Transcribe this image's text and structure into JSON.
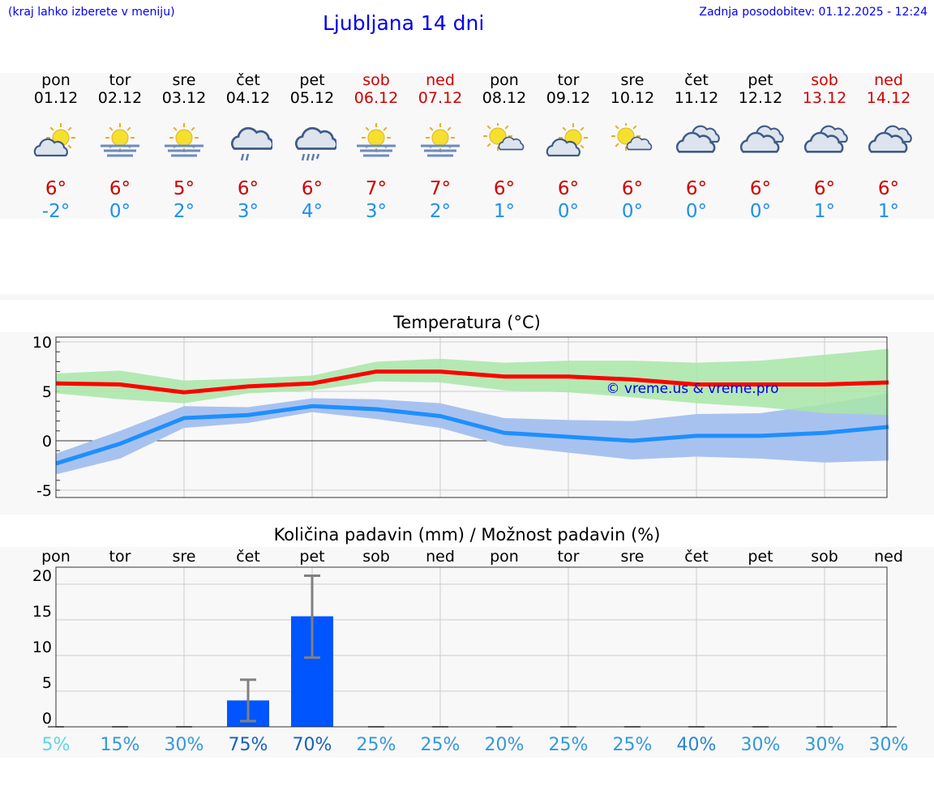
{
  "header": {
    "hint": "(kraj lahko izberete v meniju)",
    "title": "Ljubljana 14 dni",
    "updated": "Zadnja posodobitev: 01.12.2025 - 12:24"
  },
  "days": [
    {
      "name": "pon",
      "date": "01.12",
      "weekend": false,
      "icon": "sun-cloud-icon",
      "max": "6°",
      "min": "-2°"
    },
    {
      "name": "tor",
      "date": "02.12",
      "weekend": false,
      "icon": "sun-fog-icon",
      "max": "6°",
      "min": "0°"
    },
    {
      "name": "sre",
      "date": "03.12",
      "weekend": false,
      "icon": "sun-fog-icon",
      "max": "5°",
      "min": "2°"
    },
    {
      "name": "čet",
      "date": "04.12",
      "weekend": false,
      "icon": "cloud-rain-icon",
      "max": "6°",
      "min": "3°"
    },
    {
      "name": "pet",
      "date": "05.12",
      "weekend": false,
      "icon": "cloud-heavy-rain-icon",
      "max": "6°",
      "min": "4°"
    },
    {
      "name": "sob",
      "date": "06.12",
      "weekend": true,
      "icon": "sun-fog-icon",
      "max": "7°",
      "min": "3°"
    },
    {
      "name": "ned",
      "date": "07.12",
      "weekend": true,
      "icon": "sun-fog-icon",
      "max": "7°",
      "min": "2°"
    },
    {
      "name": "pon",
      "date": "08.12",
      "weekend": false,
      "icon": "sun-small-cloud-icon",
      "max": "6°",
      "min": "1°"
    },
    {
      "name": "tor",
      "date": "09.12",
      "weekend": false,
      "icon": "sun-cloud-icon",
      "max": "6°",
      "min": "0°"
    },
    {
      "name": "sre",
      "date": "10.12",
      "weekend": false,
      "icon": "sun-small-cloud-icon",
      "max": "6°",
      "min": "0°"
    },
    {
      "name": "čet",
      "date": "11.12",
      "weekend": false,
      "icon": "clouds-icon",
      "max": "6°",
      "min": "0°"
    },
    {
      "name": "pet",
      "date": "12.12",
      "weekend": false,
      "icon": "clouds-icon",
      "max": "6°",
      "min": "0°"
    },
    {
      "name": "sob",
      "date": "13.12",
      "weekend": true,
      "icon": "clouds-icon",
      "max": "6°",
      "min": "1°"
    },
    {
      "name": "ned",
      "date": "14.12",
      "weekend": true,
      "icon": "clouds-icon",
      "max": "6°",
      "min": "1°"
    }
  ],
  "colors": {
    "max_line": "#ff0000",
    "max_band": "#a8e6a8",
    "min_line": "#1e8fff",
    "min_band": "#a8c2f0",
    "bar": "#0055ff",
    "error": "#808080",
    "weekend": "#d00000"
  },
  "chart_data": [
    {
      "type": "line",
      "title": "Temperatura (°C)",
      "ylim": [
        -5.7,
        10.5
      ],
      "yticks": [
        10,
        5,
        0,
        -5
      ],
      "grid": true,
      "x": [
        "pon",
        "tor",
        "sre",
        "čet",
        "pet",
        "sob",
        "ned",
        "pon",
        "tor",
        "sre",
        "čet",
        "pet",
        "sob",
        "ned"
      ],
      "series": [
        {
          "values": [
            5.8,
            5.7,
            4.9,
            5.5,
            5.8,
            7.0,
            7.0,
            6.5,
            6.5,
            6.2,
            5.7,
            5.7,
            5.7,
            5.9
          ],
          "band_high": [
            6.8,
            7.1,
            6.1,
            6.3,
            6.6,
            8.0,
            8.3,
            7.9,
            8.1,
            8.1,
            7.9,
            8.1,
            8.7,
            9.3
          ],
          "band_low": [
            4.8,
            4.2,
            3.8,
            4.8,
            5.1,
            6.0,
            5.9,
            5.1,
            4.9,
            4.4,
            3.8,
            3.4,
            2.8,
            2.6
          ]
        },
        {
          "values": [
            -2.3,
            -0.3,
            2.3,
            2.6,
            3.5,
            3.2,
            2.5,
            0.8,
            0.4,
            0.0,
            0.5,
            0.5,
            0.8,
            1.4
          ],
          "band_high": [
            -1.3,
            1.0,
            3.5,
            3.4,
            4.3,
            4.2,
            3.8,
            2.3,
            2.1,
            2.0,
            2.7,
            2.8,
            3.7,
            4.8
          ],
          "band_low": [
            -3.4,
            -1.8,
            1.3,
            1.8,
            2.9,
            2.2,
            1.3,
            -0.5,
            -1.2,
            -1.9,
            -1.6,
            -1.8,
            -2.2,
            -2.0
          ]
        }
      ],
      "annotation": "© vreme.us & vreme.pro"
    },
    {
      "type": "bar",
      "title": "Količina padavin (mm) / Možnost padavin (%)",
      "ylim": [
        0,
        22.4
      ],
      "yticks": [
        20,
        15,
        10,
        5,
        0
      ],
      "grid": true,
      "categories": [
        "pon",
        "tor",
        "sre",
        "čet",
        "pet",
        "sob",
        "ned",
        "pon",
        "tor",
        "sre",
        "čet",
        "pet",
        "sob",
        "ned"
      ],
      "values": [
        0,
        0,
        0,
        3.7,
        15.5,
        0,
        0,
        0,
        0,
        0,
        0,
        0,
        0,
        0
      ],
      "error_low": [
        0,
        0,
        0,
        0.8,
        9.7,
        0,
        0,
        0,
        0,
        0,
        0,
        0,
        0,
        0
      ],
      "error_high": [
        0,
        0,
        0,
        6.6,
        21.2,
        0,
        0,
        0,
        0,
        0,
        0,
        0,
        0,
        0
      ],
      "probability": [
        "5%",
        "15%",
        "30%",
        "75%",
        "70%",
        "25%",
        "25%",
        "20%",
        "25%",
        "25%",
        "40%",
        "30%",
        "30%",
        "30%"
      ],
      "probability_colors": [
        "#5cd6e6",
        "#3399dd",
        "#3399dd",
        "#1560bd",
        "#1560bd",
        "#3399dd",
        "#3399dd",
        "#3399dd",
        "#3399dd",
        "#3399dd",
        "#2a85d0",
        "#3399dd",
        "#3399dd",
        "#3399dd"
      ]
    }
  ]
}
